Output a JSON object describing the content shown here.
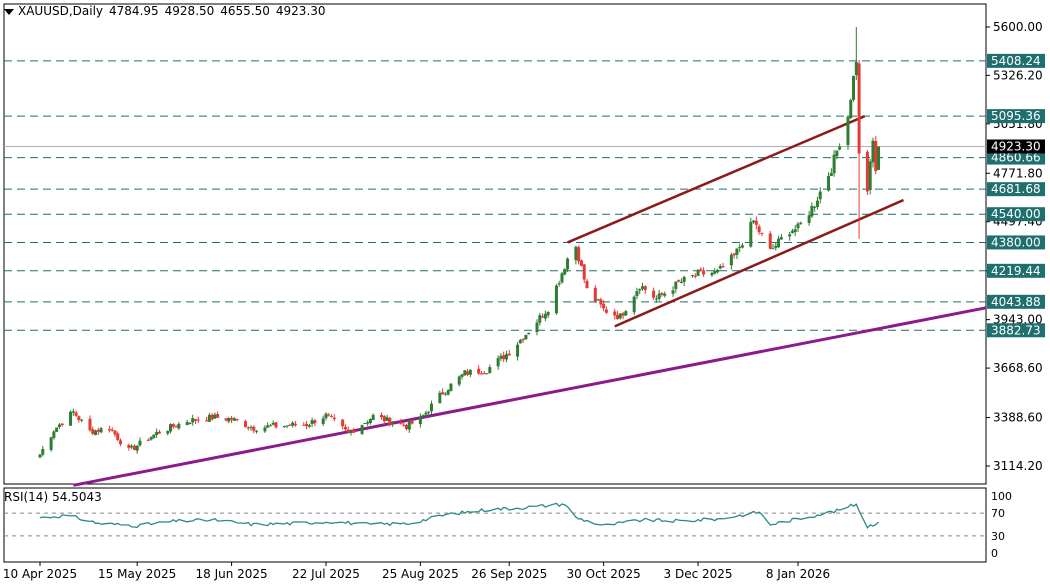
{
  "header": {
    "symbol": "XAUUSD,Daily",
    "open": "4784.95",
    "high": "4928.50",
    "low": "4655.50",
    "close": "4923.30"
  },
  "rsi_header": {
    "label": "RSI(14)",
    "value": "54.5043"
  },
  "colors": {
    "bull": "#2e7d32",
    "bear": "#e53935",
    "hline": "#1f6f6f",
    "channel": "#8b1a1a",
    "trendline": "#8b1a8b",
    "rsi_line": "#2a8a86",
    "current_price_bg": "#000000",
    "level_bg": "#1f6f6f"
  },
  "chart_data": [
    {
      "type": "candlestick",
      "title": "XAUUSD,Daily",
      "y_ticks": [
        "5600.00",
        "5326.20",
        "5051.80",
        "4771.80",
        "4497.40",
        "4219.44",
        "3943.00",
        "3668.60",
        "3388.60",
        "3114.20"
      ],
      "y_range": [
        3000,
        5680
      ],
      "x_ticks": [
        "10 Apr 2025",
        "15 May 2025",
        "18 Jun 2025",
        "22 Jul 2025",
        "25 Aug 2025",
        "26 Sep 2025",
        "30 Oct 2025",
        "3 Dec 2025",
        "8 Jan 2026"
      ],
      "horizontal_levels": [
        "5408.24",
        "5095.36",
        "4860.66",
        "4681.68",
        "4540.00",
        "4380.00",
        "4219.44",
        "4043.88",
        "3882.73"
      ],
      "current_price": "4923.30",
      "close_path": [
        [
          "10 Apr 2025",
          3180
        ],
        [
          "15 Apr 2025",
          3320
        ],
        [
          "22 Apr 2025",
          3420
        ],
        [
          "28 Apr 2025",
          3310
        ],
        [
          "5 May 2025",
          3330
        ],
        [
          "12 May 2025",
          3200
        ],
        [
          "15 May 2025",
          3230
        ],
        [
          "22 May 2025",
          3300
        ],
        [
          "2 Jun 2025",
          3370
        ],
        [
          "12 Jun 2025",
          3390
        ],
        [
          "18 Jun 2025",
          3380
        ],
        [
          "26 Jun 2025",
          3330
        ],
        [
          "3 Jul 2025",
          3340
        ],
        [
          "15 Jul 2025",
          3350
        ],
        [
          "22 Jul 2025",
          3400
        ],
        [
          "30 Jul 2025",
          3300
        ],
        [
          "8 Aug 2025",
          3395
        ],
        [
          "20 Aug 2025",
          3340
        ],
        [
          "25 Aug 2025",
          3380
        ],
        [
          "2 Sep 2025",
          3530
        ],
        [
          "10 Sep 2025",
          3640
        ],
        [
          "18 Sep 2025",
          3660
        ],
        [
          "26 Sep 2025",
          3760
        ],
        [
          "3 Oct 2025",
          3880
        ],
        [
          "10 Oct 2025",
          4010
        ],
        [
          "17 Oct 2025",
          4290
        ],
        [
          "20 Oct 2025",
          4360
        ],
        [
          "24 Oct 2025",
          4110
        ],
        [
          "30 Oct 2025",
          4000
        ],
        [
          "5 Nov 2025",
          3960
        ],
        [
          "12 Nov 2025",
          4140
        ],
        [
          "18 Nov 2025",
          4060
        ],
        [
          "26 Nov 2025",
          4150
        ],
        [
          "3 Dec 2025",
          4200
        ],
        [
          "10 Dec 2025",
          4210
        ],
        [
          "16 Dec 2025",
          4300
        ],
        [
          "23 Dec 2025",
          4500
        ],
        [
          "29 Dec 2025",
          4330
        ],
        [
          "5 Jan 2026",
          4450
        ],
        [
          "8 Jan 2026",
          4460
        ],
        [
          "14 Jan 2026",
          4600
        ],
        [
          "20 Jan 2026",
          4800
        ],
        [
          "26 Jan 2026",
          5100
        ],
        [
          "29 Jan 2026",
          5420
        ],
        [
          "30 Jan 2026",
          4870
        ],
        [
          "2 Feb 2026",
          4680
        ],
        [
          "4 Feb 2026",
          4950
        ],
        [
          "5 Feb 2026",
          4790
        ],
        [
          "6 Feb 2026",
          4923.3
        ]
      ],
      "extremes": {
        "high": 5600,
        "low": 4400
      }
    },
    {
      "type": "line",
      "title": "RSI(14)",
      "y_ticks": [
        "100",
        "70",
        "30",
        "0"
      ],
      "y_range": [
        0,
        100
      ],
      "levels": [
        70,
        30
      ],
      "last_value": 54.5043,
      "x": [
        "10 Apr 2025",
        "20 Apr 2025",
        "1 May 2025",
        "15 May 2025",
        "29 May 2025",
        "12 Jun 2025",
        "26 Jun 2025",
        "10 Jul 2025",
        "24 Jul 2025",
        "7 Aug 2025",
        "21 Aug 2025",
        "4 Sep 2025",
        "18 Sep 2025",
        "2 Oct 2025",
        "16 Oct 2025",
        "20 Oct 2025",
        "30 Oct 2025",
        "13 Nov 2025",
        "27 Nov 2025",
        "11 Dec 2025",
        "25 Dec 2025",
        "29 Dec 2025",
        "8 Jan 2026",
        "22 Jan 2026",
        "29 Jan 2026",
        "2 Feb 2026",
        "6 Feb 2026"
      ],
      "values": [
        62,
        66,
        52,
        48,
        56,
        58,
        50,
        52,
        55,
        50,
        52,
        68,
        76,
        80,
        86,
        62,
        48,
        58,
        56,
        60,
        72,
        50,
        60,
        74,
        86,
        46,
        54.5043
      ]
    }
  ]
}
